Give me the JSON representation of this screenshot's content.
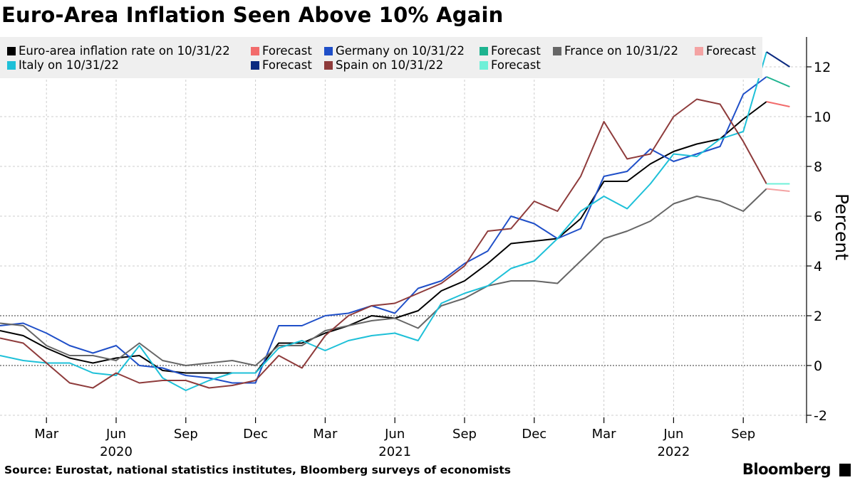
{
  "title": "Euro-Area Inflation Seen Above 10% Again",
  "source": "Source: Eurostat, national statistics institutes, Bloomberg surveys of economists",
  "logo": "Bloomberg",
  "chart_data": {
    "type": "line",
    "title": "Euro-Area Inflation Seen Above 10% Again",
    "ylabel": "Percent",
    "xlabel": "",
    "ylim": [
      -2.3,
      13.2
    ],
    "yticks": [
      -2,
      0,
      2,
      4,
      6,
      8,
      10,
      12
    ],
    "y_axis_side": "right",
    "grid": true,
    "reference_lines": [
      0,
      2
    ],
    "legend_placement": "top",
    "x_start": "2020-01",
    "x_end": "2022-11",
    "x_tick_labels": [
      "Mar",
      "Jun",
      "Sep",
      "Dec",
      "Mar",
      "Jun",
      "Sep",
      "Dec",
      "Mar",
      "Jun",
      "Sep"
    ],
    "x_year_labels": [
      "2020",
      "2021",
      "2022"
    ],
    "series": [
      {
        "name": "Euro-area inflation rate on 10/31/22",
        "color": "#000000",
        "values": [
          1.4,
          1.2,
          0.7,
          0.3,
          0.1,
          0.3,
          0.4,
          -0.2,
          -0.3,
          -0.3,
          -0.3,
          -0.3,
          0.9,
          0.9,
          1.3,
          1.6,
          2.0,
          1.9,
          2.2,
          3.0,
          3.4,
          4.1,
          4.9,
          5.0,
          5.1,
          5.9,
          7.4,
          7.4,
          8.1,
          8.6,
          8.9,
          9.1,
          9.9,
          10.6
        ],
        "forecast": {
          "name": "Forecast",
          "color": "#f26b6b",
          "values": [
            10.6,
            10.4
          ]
        }
      },
      {
        "name": "Germany on 10/31/22",
        "color": "#1f4fc8",
        "values": [
          1.6,
          1.7,
          1.3,
          0.8,
          0.5,
          0.8,
          0.0,
          -0.1,
          -0.4,
          -0.5,
          -0.7,
          -0.7,
          1.6,
          1.6,
          2.0,
          2.1,
          2.4,
          2.1,
          3.1,
          3.4,
          4.1,
          4.6,
          6.0,
          5.7,
          5.1,
          5.5,
          7.6,
          7.8,
          8.7,
          8.2,
          8.5,
          8.8,
          10.9,
          11.6
        ],
        "forecast": {
          "name": "Forecast",
          "color": "#1db38f",
          "values": [
            11.6,
            11.2
          ]
        }
      },
      {
        "name": "France on 10/31/22",
        "color": "#666666",
        "values": [
          1.7,
          1.6,
          0.8,
          0.4,
          0.4,
          0.2,
          0.9,
          0.2,
          0.0,
          0.1,
          0.2,
          0.0,
          0.8,
          0.8,
          1.4,
          1.6,
          1.8,
          1.9,
          1.5,
          2.4,
          2.7,
          3.2,
          3.4,
          3.4,
          3.3,
          4.2,
          5.1,
          5.4,
          5.8,
          6.5,
          6.8,
          6.6,
          6.2,
          7.1
        ],
        "forecast": {
          "name": "Forecast",
          "color": "#f4a3a3",
          "values": [
            7.1,
            7.0
          ]
        }
      },
      {
        "name": "Italy on 10/31/22",
        "color": "#1ec0d8",
        "values": [
          0.4,
          0.2,
          0.1,
          0.1,
          -0.3,
          -0.4,
          0.8,
          -0.5,
          -1.0,
          -0.6,
          -0.3,
          -0.3,
          0.7,
          1.0,
          0.6,
          1.0,
          1.2,
          1.3,
          1.0,
          2.5,
          2.9,
          3.2,
          3.9,
          4.2,
          5.1,
          6.2,
          6.8,
          6.3,
          7.3,
          8.5,
          8.4,
          9.1,
          9.4,
          12.6
        ],
        "forecast": {
          "name": "Forecast",
          "color": "#0b2a80",
          "values": [
            12.6,
            12.0
          ]
        }
      },
      {
        "name": "Spain on 10/31/22",
        "color": "#8e3b3b",
        "values": [
          1.1,
          0.9,
          0.1,
          -0.7,
          -0.9,
          -0.3,
          -0.7,
          -0.6,
          -0.6,
          -0.9,
          -0.8,
          -0.6,
          0.4,
          -0.1,
          1.2,
          2.0,
          2.4,
          2.5,
          2.9,
          3.3,
          4.0,
          5.4,
          5.5,
          6.6,
          6.2,
          7.6,
          9.8,
          8.3,
          8.5,
          10.0,
          10.7,
          10.5,
          9.0,
          7.3
        ],
        "forecast": {
          "name": "Forecast",
          "color": "#6ff0d8",
          "values": [
            7.3,
            7.3
          ]
        }
      }
    ]
  }
}
